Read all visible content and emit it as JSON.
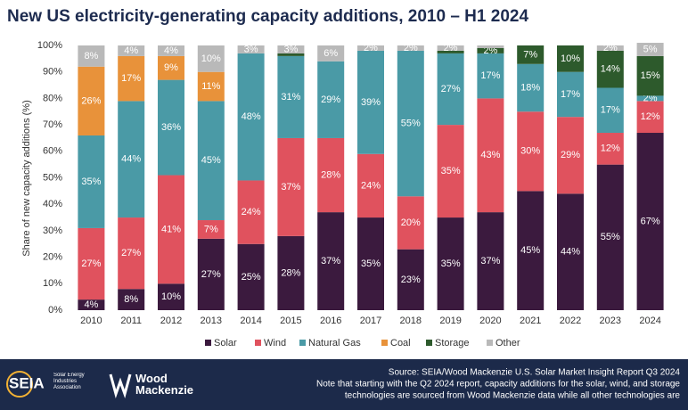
{
  "chart_data": {
    "type": "stacked_bar",
    "title": "New US electricity-generating capacity additions, 2010 – H1 2024",
    "y_label": "Share of new capacity additions (%)",
    "categories": [
      "2010",
      "2011",
      "2012",
      "2013",
      "2014",
      "2015",
      "2016",
      "2017",
      "2018",
      "2019",
      "2020",
      "2021",
      "2022",
      "2023",
      "2024"
    ],
    "series": [
      {
        "name": "Solar",
        "color": "#3b1a3e",
        "values": [
          4,
          8,
          10,
          27,
          25,
          28,
          37,
          35,
          23,
          35,
          37,
          45,
          44,
          55,
          67
        ],
        "value_labels": [
          "4%",
          "8%",
          "10%",
          "27%",
          "25%",
          "28%",
          "37%",
          "35%",
          "23%",
          "35%",
          "37%",
          "45%",
          "44%",
          "55%",
          "67%"
        ]
      },
      {
        "name": "Wind",
        "color": "#e0525e",
        "values": [
          27,
          27,
          41,
          7,
          24,
          37,
          28,
          24,
          20,
          35,
          43,
          30,
          29,
          12,
          12
        ],
        "value_labels": [
          "27%",
          "27%",
          "41%",
          "7%",
          "24%",
          "37%",
          "28%",
          "24%",
          "20%",
          "35%",
          "43%",
          "30%",
          "29%",
          "12%",
          "12%"
        ]
      },
      {
        "name": "Natural Gas",
        "color": "#4a9aa6",
        "values": [
          35,
          44,
          36,
          45,
          48,
          31,
          29,
          39,
          55,
          27,
          17,
          18,
          17,
          17,
          2
        ],
        "value_labels": [
          "35%",
          "44%",
          "36%",
          "45%",
          "48%",
          "31%",
          "29%",
          "39%",
          "55%",
          "27%",
          "17%",
          "18%",
          "17%",
          "17%",
          "2%"
        ]
      },
      {
        "name": "Coal",
        "color": "#e8923a",
        "values": [
          26,
          17,
          9,
          11,
          0,
          0,
          0,
          0,
          0,
          0,
          0,
          0,
          0,
          0,
          0
        ],
        "value_labels": [
          "26%",
          "17%",
          "9%",
          "11%",
          null,
          null,
          null,
          null,
          null,
          null,
          null,
          null,
          null,
          null,
          null
        ]
      },
      {
        "name": "Storage",
        "color": "#2d5a2c",
        "values": [
          0,
          0,
          0,
          0,
          0,
          1,
          0,
          0,
          0,
          1,
          2,
          7,
          10,
          14,
          15
        ],
        "value_labels": [
          null,
          null,
          null,
          null,
          null,
          null,
          null,
          null,
          null,
          null,
          "2%",
          "7%",
          "10%",
          "14%",
          "15%"
        ]
      },
      {
        "name": "Other",
        "color": "#b9b9b9",
        "values": [
          8,
          4,
          4,
          10,
          3,
          3,
          6,
          2,
          2,
          2,
          1,
          0,
          0,
          2,
          5
        ],
        "value_labels": [
          "8%",
          "4%",
          "4%",
          "10%",
          "3%",
          "3%",
          "6%",
          "2%",
          "2%",
          "2%",
          null,
          null,
          null,
          "2%",
          "5%"
        ]
      }
    ],
    "ylim": [
      0,
      100
    ],
    "yticks": [
      {
        "value": 0,
        "label": "0%"
      },
      {
        "value": 10,
        "label": "10%"
      },
      {
        "value": 20,
        "label": "20%"
      },
      {
        "value": 30,
        "label": "30%"
      },
      {
        "value": 40,
        "label": "40%"
      },
      {
        "value": 50,
        "label": "50%"
      },
      {
        "value": 60,
        "label": "60%"
      },
      {
        "value": 70,
        "label": "70%"
      },
      {
        "value": 80,
        "label": "80%"
      },
      {
        "value": 90,
        "label": "90%"
      },
      {
        "value": 100,
        "label": "100%"
      }
    ],
    "grid": false,
    "legend": "bottom"
  },
  "footer": {
    "seia": "SEIA",
    "seia_sub": "Solar Energy Industries Association",
    "woodmac": "Wood Mackenzie",
    "source": [
      "Source: SEIA/Wood Mackenzie U.S. Solar Market Insight Report Q3 2024",
      "Note that starting with the Q2 2024 report, capacity additions for the solar, wind, and storage",
      "technologies are sourced from Wood Mackenzie data while all other technologies are"
    ]
  }
}
